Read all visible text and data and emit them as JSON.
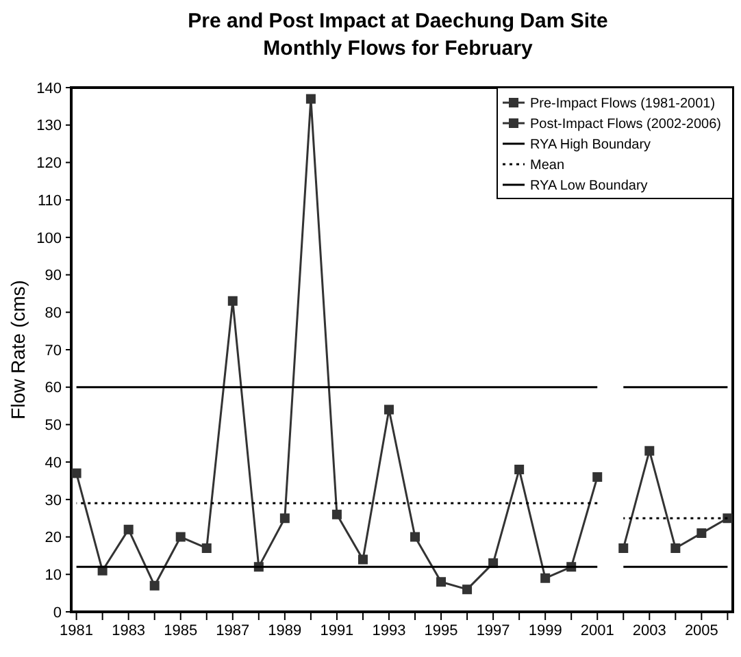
{
  "chart_data": {
    "type": "line",
    "title": "Pre and Post Impact at Daechung Dam Site",
    "subtitle": "Monthly Flows for February",
    "ylabel": "Flow Rate (cms)",
    "xlim": [
      1980.8,
      2006.2
    ],
    "xticks": [
      1981,
      {
        "value": 1982,
        "label": null
      },
      1983,
      {
        "value": 1984,
        "label": null
      },
      1985,
      {
        "value": 1986,
        "label": null
      },
      1987,
      {
        "value": 1988,
        "label": null
      },
      1989,
      {
        "value": 1990,
        "label": null
      },
      1991,
      {
        "value": 1992,
        "label": null
      },
      1993,
      {
        "value": 1994,
        "label": null
      },
      1995,
      {
        "value": 1996,
        "label": null
      },
      1997,
      {
        "value": 1998,
        "label": null
      },
      1999,
      {
        "value": 2000,
        "label": null
      },
      2001,
      {
        "value": 2002,
        "label": null
      },
      2003,
      {
        "value": 2004,
        "label": null
      },
      2005,
      {
        "value": 2006,
        "label": null
      }
    ],
    "ylim": [
      0,
      140
    ],
    "yticks": [
      0,
      10,
      20,
      30,
      40,
      50,
      60,
      70,
      80,
      90,
      100,
      110,
      120,
      130,
      140
    ],
    "grid": false,
    "legend": "top right",
    "series": [
      {
        "name": "Pre-Impact Flows (1981-2001)",
        "color": "#333333",
        "marker": "square",
        "line_style": "solid",
        "x": [
          1981,
          1982,
          1983,
          1984,
          1985,
          1986,
          1987,
          1988,
          1989,
          1990,
          1991,
          1992,
          1993,
          1994,
          1995,
          1996,
          1997,
          1998,
          1999,
          2000,
          2001
        ],
        "values": [
          37,
          11,
          22,
          7,
          20,
          17,
          83,
          12,
          25,
          137,
          26,
          14,
          54,
          20,
          8,
          6,
          13,
          38,
          9,
          12,
          36
        ]
      },
      {
        "name": "Post-Impact Flows (2002-2006)",
        "color": "#333333",
        "marker": "square",
        "line_style": "solid",
        "x": [
          2002,
          2003,
          2004,
          2005,
          2006
        ],
        "values": [
          17,
          43,
          17,
          21,
          25
        ]
      },
      {
        "name": "RYA High Boundary",
        "color": "#000000",
        "marker": "none",
        "line_style": "solid",
        "x": [
          1981,
          2001
        ],
        "values": [
          60,
          60
        ]
      },
      {
        "color": "#000000",
        "marker": "none",
        "line_style": "solid",
        "x": [
          2002,
          2006
        ],
        "values": [
          60,
          60
        ]
      },
      {
        "name": "Mean",
        "color": "#000000",
        "marker": "none",
        "line_style": "dotted",
        "x": [
          1981,
          2001
        ],
        "values": [
          29,
          29
        ]
      },
      {
        "color": "#000000",
        "marker": "none",
        "line_style": "dotted",
        "x": [
          2002,
          2006
        ],
        "values": [
          25,
          25
        ]
      },
      {
        "name": "RYA Low Boundary",
        "color": "#000000",
        "marker": "none",
        "line_style": "solid",
        "x": [
          1981,
          2001
        ],
        "values": [
          12,
          12
        ]
      },
      {
        "color": "#000000",
        "marker": "none",
        "line_style": "solid",
        "x": [
          2002,
          2006
        ],
        "values": [
          12,
          12
        ]
      }
    ]
  }
}
